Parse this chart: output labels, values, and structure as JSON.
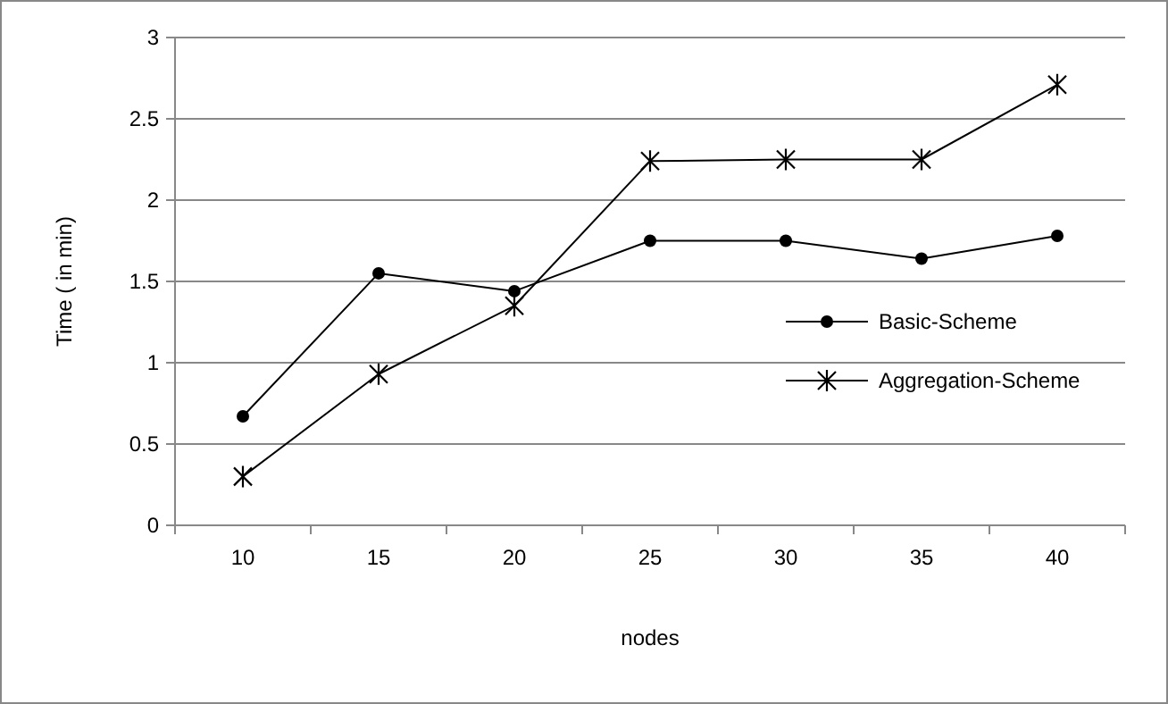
{
  "chart_data": {
    "type": "line",
    "xlabel": "nodes",
    "ylabel": "Time ( in min)",
    "categories": [
      "10",
      "15",
      "20",
      "25",
      "30",
      "35",
      "40"
    ],
    "series": [
      {
        "name": "Basic-Scheme",
        "color": "#000000",
        "marker": "circle",
        "values": [
          0.67,
          1.55,
          1.44,
          1.75,
          1.75,
          1.64,
          1.78
        ]
      },
      {
        "name": "Aggregation-Scheme",
        "color": "#000000",
        "marker": "cross",
        "values": [
          0.3,
          0.93,
          1.35,
          2.24,
          2.25,
          2.25,
          2.71
        ]
      }
    ],
    "ylim": [
      0,
      3
    ],
    "yticks": [
      0,
      0.5,
      1,
      1.5,
      2,
      2.5,
      3
    ],
    "grid": "y",
    "legend": "right",
    "line_style": "solid"
  }
}
